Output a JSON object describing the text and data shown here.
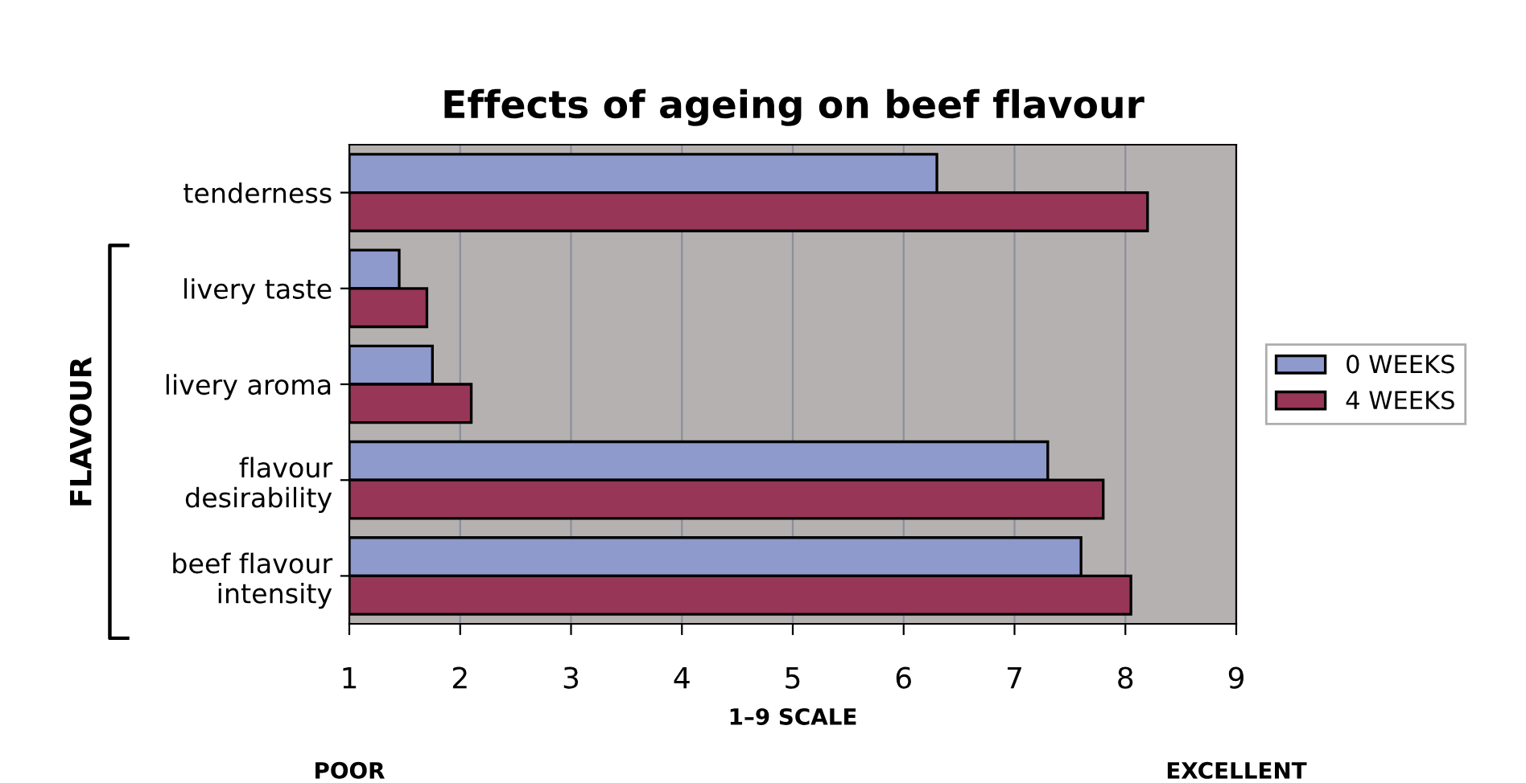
{
  "chart_data": {
    "type": "bar",
    "orientation": "horizontal",
    "title": "Effects of ageing on beef flavour",
    "xlabel": "1–9 SCALE",
    "categories": [
      "tenderness",
      "livery taste",
      "livery aroma",
      "flavour\ndesirability",
      "beef flavour\nintensity"
    ],
    "series": [
      {
        "name": "0 WEEKS",
        "color": "#8e99cc",
        "values": [
          6.3,
          1.45,
          1.75,
          7.3,
          7.6
        ]
      },
      {
        "name": "4 WEEKS",
        "color": "#983658",
        "values": [
          8.2,
          1.7,
          2.1,
          7.8,
          8.05
        ]
      }
    ],
    "xlim": [
      1,
      9
    ],
    "xticks": [
      1,
      2,
      3,
      4,
      5,
      6,
      7,
      8,
      9
    ],
    "grid": "x",
    "legend": "right",
    "annotations": [
      "POOR",
      "EXCELLENT",
      "FLAVOUR"
    ]
  }
}
